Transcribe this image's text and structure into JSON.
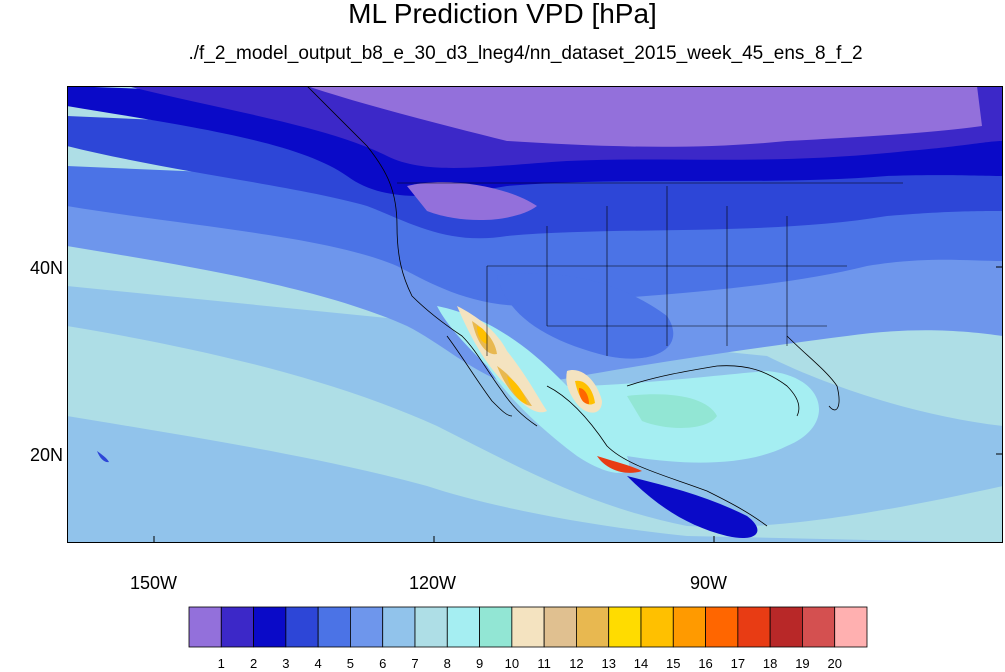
{
  "title": "ML Prediction VPD [hPa]",
  "subtitle": "./f_2_model_output_b8_e_30_d3_lneg4/nn_dataset_2015_week_45_ens_8_f_2",
  "lon_labels": [
    "150W",
    "120W",
    "90W"
  ],
  "lat_labels": [
    "40N",
    "20N"
  ],
  "colorbar": {
    "colors": [
      "#9370db",
      "#3c28c8",
      "#0a0ac8",
      "#2d46d7",
      "#4b73e6",
      "#6e96ec",
      "#91c3eb",
      "#aedee6",
      "#a5eef2",
      "#92e6d4",
      "#f4e3c0",
      "#e0c090",
      "#e8b850",
      "#ffdc00",
      "#ffc000",
      "#ff9a00",
      "#ff6600",
      "#e83c14",
      "#b82828",
      "#d45050",
      "#ffb0b0"
    ],
    "labels": [
      "1",
      "2",
      "3",
      "4",
      "5",
      "6",
      "7",
      "8",
      "9",
      "10",
      "11",
      "12",
      "13",
      "14",
      "15",
      "16",
      "17",
      "18",
      "19",
      "20"
    ]
  }
}
